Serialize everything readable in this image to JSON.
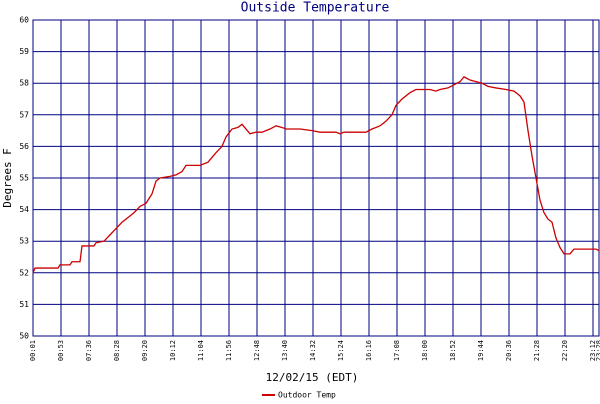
{
  "chart_data": {
    "type": "line",
    "title": "Outside Temperature",
    "xlabel": "12/02/15 (EDT)",
    "ylabel": "Degrees F",
    "xlim": [
      0,
      566
    ],
    "ylim": [
      50,
      60
    ],
    "xticks": [
      {
        "value": 0,
        "label": "00:01"
      },
      {
        "value": 28,
        "label": "00:53"
      },
      {
        "value": 56,
        "label": "07:36"
      },
      {
        "value": 84,
        "label": "08:28"
      },
      {
        "value": 112,
        "label": "09:20"
      },
      {
        "value": 140,
        "label": "10:12"
      },
      {
        "value": 168,
        "label": "11:04"
      },
      {
        "value": 196,
        "label": "11:56"
      },
      {
        "value": 224,
        "label": "12:48"
      },
      {
        "value": 252,
        "label": "13:40"
      },
      {
        "value": 280,
        "label": "14:32"
      },
      {
        "value": 308,
        "label": "15:24"
      },
      {
        "value": 336,
        "label": "16:16"
      },
      {
        "value": 364,
        "label": "17:08"
      },
      {
        "value": 392,
        "label": "18:00"
      },
      {
        "value": 420,
        "label": "18:52"
      },
      {
        "value": 448,
        "label": "19:44"
      },
      {
        "value": 476,
        "label": "20:36"
      },
      {
        "value": 504,
        "label": "21:28"
      },
      {
        "value": 532,
        "label": "22:20"
      },
      {
        "value": 560,
        "label": "23:12"
      },
      {
        "value": 566,
        "label": "23:28"
      }
    ],
    "yticks": [
      50,
      51,
      52,
      53,
      54,
      55,
      56,
      57,
      58,
      59,
      60
    ],
    "grid": true,
    "x": [
      0,
      2,
      25,
      27,
      37,
      39,
      47,
      49,
      51,
      61,
      63,
      71,
      77,
      83,
      89,
      95,
      101,
      107,
      113,
      119,
      123,
      127,
      137,
      143,
      149,
      153,
      167,
      175,
      183,
      189,
      193,
      199,
      205,
      209,
      213,
      217,
      223,
      229,
      237,
      243,
      249,
      253,
      267,
      279,
      287,
      303,
      307,
      311,
      333,
      339,
      347,
      353,
      359,
      363,
      369,
      377,
      383,
      397,
      403,
      407,
      415,
      421,
      427,
      431,
      437,
      443,
      449,
      455,
      463,
      473,
      481,
      487,
      491,
      495,
      499,
      503,
      507,
      511,
      515,
      519,
      523,
      527,
      531,
      537,
      541,
      553,
      563,
      566
    ],
    "series": [
      {
        "name": "Outdoor Temp",
        "color": "#cc0000",
        "values": [
          52.0,
          52.15,
          52.15,
          52.25,
          52.25,
          52.35,
          52.35,
          52.85,
          52.85,
          52.85,
          52.95,
          53.0,
          53.2,
          53.4,
          53.6,
          53.75,
          53.9,
          54.1,
          54.2,
          54.5,
          54.9,
          55.0,
          55.05,
          55.1,
          55.2,
          55.4,
          55.4,
          55.5,
          55.8,
          56.0,
          56.3,
          56.55,
          56.6,
          56.7,
          56.55,
          56.4,
          56.45,
          56.45,
          56.55,
          56.65,
          56.6,
          56.55,
          56.55,
          56.5,
          56.45,
          56.45,
          56.4,
          56.45,
          56.45,
          56.55,
          56.65,
          56.8,
          57.0,
          57.3,
          57.5,
          57.7,
          57.8,
          57.8,
          57.75,
          57.8,
          57.85,
          57.95,
          58.05,
          58.2,
          58.1,
          58.05,
          58.0,
          57.9,
          57.85,
          57.8,
          57.75,
          57.6,
          57.4,
          56.5,
          55.7,
          55.0,
          54.3,
          53.9,
          53.7,
          53.6,
          53.1,
          52.8,
          52.6,
          52.6,
          52.75,
          52.75,
          52.75,
          52.7
        ]
      }
    ]
  }
}
